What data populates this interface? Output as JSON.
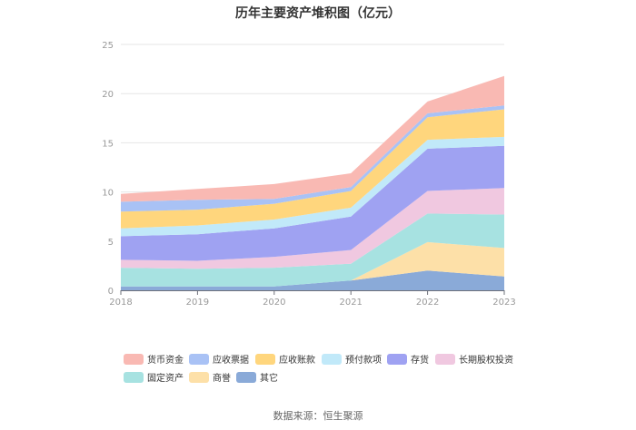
{
  "chart_data": {
    "type": "area",
    "stacked": true,
    "title": "历年主要资产堆积图（亿元）",
    "x": [
      "2018",
      "2019",
      "2020",
      "2021",
      "2022",
      "2023"
    ],
    "ylim": [
      0,
      25
    ],
    "yticks": [
      "0",
      "5",
      "10",
      "15",
      "20",
      "25"
    ],
    "grid": true,
    "legend_position": "bottom",
    "series": [
      {
        "name": "其它",
        "color": "#8aaad8",
        "values": [
          0.4,
          0.4,
          0.4,
          1.0,
          2.0,
          1.4
        ]
      },
      {
        "name": "商誉",
        "color": "#fde0a8",
        "values": [
          0.0,
          0.0,
          0.0,
          0.0,
          2.9,
          2.9
        ]
      },
      {
        "name": "固定资产",
        "color": "#a7e2e1",
        "values": [
          1.9,
          1.8,
          1.9,
          1.7,
          2.9,
          3.4
        ]
      },
      {
        "name": "长期股权投资",
        "color": "#f0c8e0",
        "values": [
          0.8,
          0.8,
          1.1,
          1.4,
          2.3,
          2.7
        ]
      },
      {
        "name": "存货",
        "color": "#9fa2f2",
        "values": [
          2.4,
          2.7,
          2.9,
          3.4,
          4.3,
          4.3
        ]
      },
      {
        "name": "预付款项",
        "color": "#c1e9f9",
        "values": [
          0.8,
          0.9,
          0.9,
          0.9,
          0.9,
          0.9
        ]
      },
      {
        "name": "应收账款",
        "color": "#ffd67d",
        "values": [
          1.7,
          1.6,
          1.6,
          1.7,
          2.3,
          2.8
        ]
      },
      {
        "name": "应收票据",
        "color": "#a9c2f5",
        "values": [
          1.0,
          1.0,
          0.5,
          0.4,
          0.4,
          0.4
        ]
      },
      {
        "name": "货币资金",
        "color": "#f9b9b3",
        "values": [
          0.8,
          1.1,
          1.5,
          1.4,
          1.2,
          3.0
        ]
      }
    ],
    "legend": [
      "货币资金",
      "应收票据",
      "应收账款",
      "预付款项",
      "存货",
      "长期股权投资",
      "固定资产",
      "商誉",
      "其它"
    ],
    "source": "数据来源：恒生聚源"
  }
}
